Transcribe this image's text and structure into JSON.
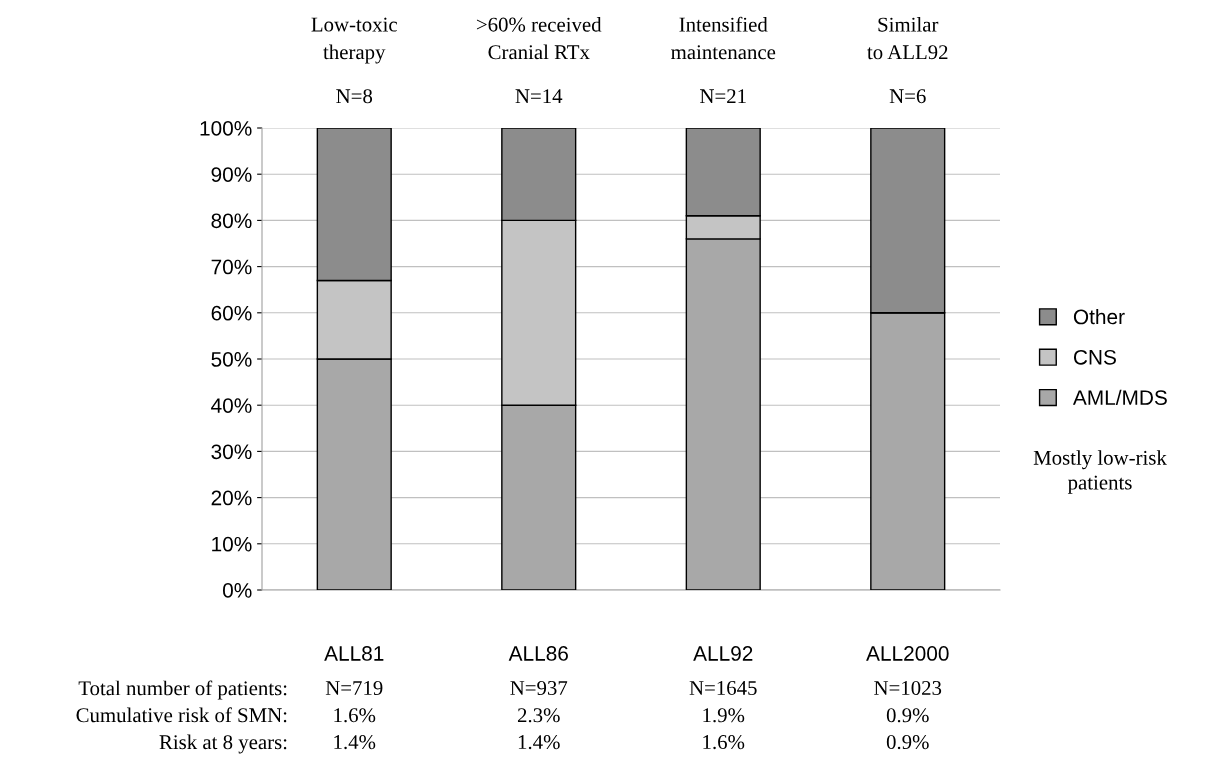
{
  "chart_data": {
    "type": "bar",
    "stacked": true,
    "categories": [
      "ALL81",
      "ALL86",
      "ALL92",
      "ALL2000"
    ],
    "series": [
      {
        "name": "AML/MDS",
        "color": "#a8a8a8",
        "values": [
          50,
          40,
          76,
          60
        ]
      },
      {
        "name": "CNS",
        "color": "#c4c4c4",
        "values": [
          17,
          40,
          5,
          0
        ]
      },
      {
        "name": "Other",
        "color": "#8c8c8c",
        "values": [
          33,
          20,
          19,
          40
        ]
      }
    ],
    "ylim": [
      0,
      100
    ],
    "yticks": [
      {
        "value": 0,
        "label": "0%"
      },
      {
        "value": 10,
        "label": "10%"
      },
      {
        "value": 20,
        "label": "20%"
      },
      {
        "value": 30,
        "label": "30%"
      },
      {
        "value": 40,
        "label": "40%"
      },
      {
        "value": 50,
        "label": "50%"
      },
      {
        "value": 60,
        "label": "60%"
      },
      {
        "value": 70,
        "label": "70%"
      },
      {
        "value": 80,
        "label": "80%"
      },
      {
        "value": 90,
        "label": "90%"
      },
      {
        "value": 100,
        "label": "100%"
      }
    ],
    "grid": "y",
    "legend": "right",
    "annotations": [
      "Low-toxic therapy",
      ">60% received Cranial RTx",
      "Intensified maintenance",
      "Similar to ALL92",
      "N=8",
      "N=14",
      "N=21",
      "N=6",
      "Mostly low-risk patients",
      "Total number of patients:",
      "Cumulative risk of SMN:",
      "Risk at 8 years:",
      "N=719",
      "N=937",
      "N=1645",
      "N=1023",
      "1.6%",
      "2.3%",
      "1.9%",
      "0.9%",
      "1.4%",
      "1.4%",
      "1.6%",
      "0.9%"
    ]
  }
}
